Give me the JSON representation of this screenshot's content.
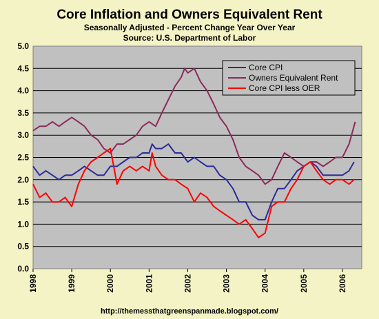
{
  "chart_data": {
    "type": "line",
    "title": "Core Inflation and Owners Equivalent Rent",
    "subtitle": "Seasonally Adjusted - Percent Change Year Over Year",
    "source": "Source: U.S. Department of Labor",
    "footer": "http://themessthatgreenspanmade.blogspot.com/",
    "x_range": [
      1998.0,
      2006.5
    ],
    "ylim": [
      0,
      5
    ],
    "y_ticks": [
      "0.0",
      "0.5",
      "1.0",
      "1.5",
      "2.0",
      "2.5",
      "3.0",
      "3.5",
      "4.0",
      "4.5",
      "5.0"
    ],
    "x_ticks": [
      "1998",
      "1999",
      "2000",
      "2001",
      "2002",
      "2003",
      "2004",
      "2005",
      "2006"
    ],
    "grid": "horizontal",
    "legend_position": "top-right",
    "colors": {
      "plot_bg": "#c0c0c0",
      "page_bg": "#f3f3c6",
      "legend_bg": "#c0c0c0"
    },
    "series": [
      {
        "name": "Core CPI",
        "color": "#2b2b9a",
        "x": [
          1998.0,
          1998.17,
          1998.33,
          1998.5,
          1998.67,
          1998.83,
          1999.0,
          1999.17,
          1999.33,
          1999.5,
          1999.67,
          1999.83,
          2000.0,
          2000.17,
          2000.33,
          2000.5,
          2000.67,
          2000.83,
          2001.0,
          2001.08,
          2001.17,
          2001.33,
          2001.5,
          2001.67,
          2001.83,
          2002.0,
          2002.17,
          2002.33,
          2002.5,
          2002.67,
          2002.83,
          2003.0,
          2003.17,
          2003.33,
          2003.5,
          2003.67,
          2003.83,
          2004.0,
          2004.17,
          2004.33,
          2004.5,
          2004.67,
          2004.83,
          2005.0,
          2005.17,
          2005.33,
          2005.5,
          2005.67,
          2005.83,
          2006.0,
          2006.17,
          2006.3
        ],
        "values": [
          2.3,
          2.1,
          2.2,
          2.1,
          2.0,
          2.1,
          2.1,
          2.2,
          2.3,
          2.2,
          2.1,
          2.1,
          2.3,
          2.3,
          2.4,
          2.5,
          2.5,
          2.6,
          2.6,
          2.8,
          2.7,
          2.7,
          2.8,
          2.6,
          2.6,
          2.4,
          2.5,
          2.4,
          2.3,
          2.3,
          2.1,
          2.0,
          1.8,
          1.5,
          1.5,
          1.2,
          1.1,
          1.1,
          1.5,
          1.8,
          1.8,
          2.0,
          2.2,
          2.3,
          2.4,
          2.3,
          2.1,
          2.1,
          2.1,
          2.1,
          2.2,
          2.4
        ]
      },
      {
        "name": "Owners Equivalent Rent",
        "color": "#8b2a5a",
        "x": [
          1998.0,
          1998.17,
          1998.33,
          1998.5,
          1998.67,
          1998.83,
          1999.0,
          1999.17,
          1999.33,
          1999.5,
          1999.67,
          1999.83,
          2000.0,
          2000.17,
          2000.33,
          2000.5,
          2000.67,
          2000.83,
          2001.0,
          2001.17,
          2001.33,
          2001.5,
          2001.67,
          2001.83,
          2001.92,
          2002.0,
          2002.17,
          2002.33,
          2002.5,
          2002.67,
          2002.83,
          2003.0,
          2003.17,
          2003.33,
          2003.5,
          2003.67,
          2003.83,
          2004.0,
          2004.17,
          2004.33,
          2004.5,
          2004.67,
          2004.83,
          2005.0,
          2005.17,
          2005.33,
          2005.5,
          2005.67,
          2005.83,
          2006.0,
          2006.17,
          2006.33
        ],
        "values": [
          3.1,
          3.2,
          3.2,
          3.3,
          3.2,
          3.3,
          3.4,
          3.3,
          3.2,
          3.0,
          2.9,
          2.7,
          2.6,
          2.8,
          2.8,
          2.9,
          3.0,
          3.2,
          3.3,
          3.2,
          3.5,
          3.8,
          4.1,
          4.3,
          4.5,
          4.4,
          4.5,
          4.2,
          4.0,
          3.7,
          3.4,
          3.2,
          2.9,
          2.5,
          2.3,
          2.2,
          2.1,
          1.9,
          2.0,
          2.3,
          2.6,
          2.5,
          2.4,
          2.3,
          2.4,
          2.4,
          2.3,
          2.4,
          2.5,
          2.5,
          2.8,
          3.3
        ]
      },
      {
        "name": "Core CPI less OER",
        "color": "#ff0000",
        "x": [
          1998.0,
          1998.17,
          1998.33,
          1998.5,
          1998.67,
          1998.83,
          1999.0,
          1999.17,
          1999.33,
          1999.5,
          1999.67,
          1999.83,
          2000.0,
          2000.17,
          2000.33,
          2000.5,
          2000.67,
          2000.83,
          2001.0,
          2001.08,
          2001.17,
          2001.33,
          2001.5,
          2001.67,
          2001.83,
          2002.0,
          2002.17,
          2002.33,
          2002.5,
          2002.67,
          2002.83,
          2003.0,
          2003.17,
          2003.33,
          2003.5,
          2003.67,
          2003.83,
          2004.0,
          2004.17,
          2004.33,
          2004.5,
          2004.67,
          2004.83,
          2005.0,
          2005.17,
          2005.33,
          2005.5,
          2005.67,
          2005.83,
          2006.0,
          2006.17,
          2006.3
        ],
        "values": [
          1.9,
          1.6,
          1.7,
          1.5,
          1.5,
          1.6,
          1.4,
          1.9,
          2.2,
          2.4,
          2.5,
          2.6,
          2.7,
          1.9,
          2.2,
          2.3,
          2.2,
          2.3,
          2.2,
          2.6,
          2.3,
          2.1,
          2.0,
          2.0,
          1.9,
          1.8,
          1.5,
          1.7,
          1.6,
          1.4,
          1.3,
          1.2,
          1.1,
          1.0,
          1.1,
          0.9,
          0.7,
          0.8,
          1.4,
          1.5,
          1.5,
          1.8,
          2.0,
          2.3,
          2.4,
          2.2,
          2.0,
          1.9,
          2.0,
          2.0,
          1.9,
          2.0
        ]
      }
    ]
  }
}
